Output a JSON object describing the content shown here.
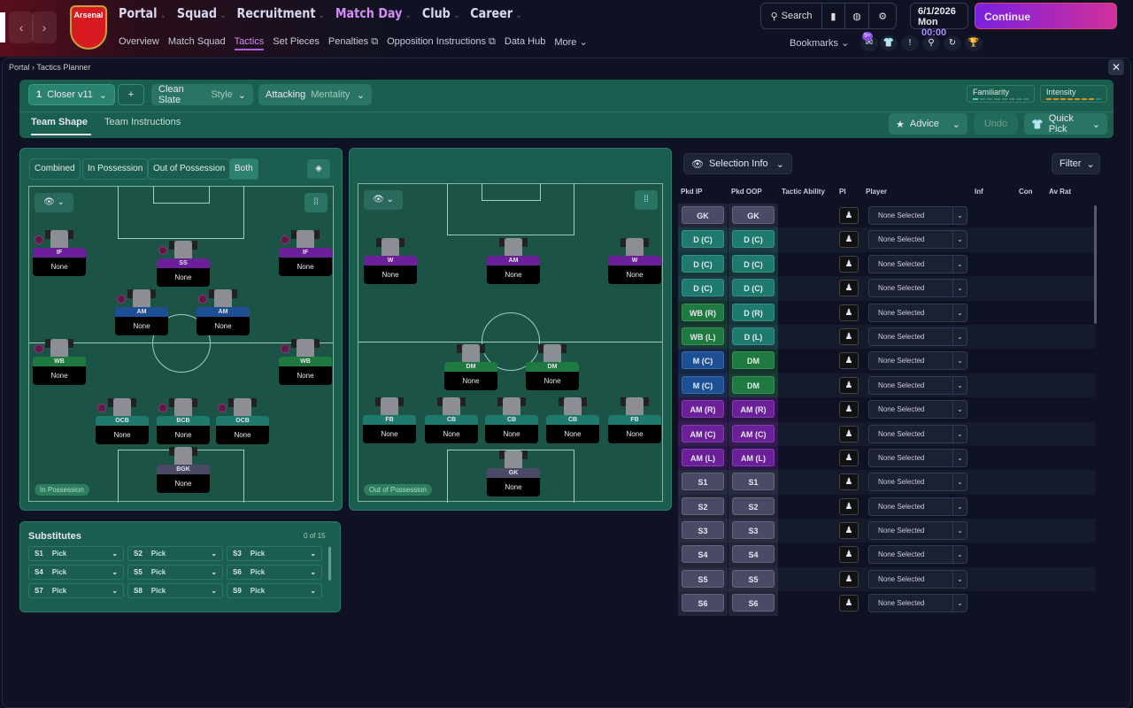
{
  "nav": {
    "back": "‹",
    "forward": "›",
    "club": "Arsenal",
    "main": [
      {
        "label": "Portal"
      },
      {
        "label": "Squad"
      },
      {
        "label": "Recruitment"
      },
      {
        "label": "Match Day",
        "active": true
      },
      {
        "label": "Club"
      },
      {
        "label": "Career"
      }
    ],
    "sub": [
      {
        "label": "Overview"
      },
      {
        "label": "Match Squad"
      },
      {
        "label": "Tactics",
        "active": true
      },
      {
        "label": "Set Pieces"
      },
      {
        "label": "Penalties ⧉"
      },
      {
        "label": "Opposition Instructions ⧉"
      },
      {
        "label": "Data Hub"
      },
      {
        "label": "More ⌄"
      }
    ],
    "search": "Search",
    "date": "6/1/2026",
    "day": "Mon",
    "time": "00:00",
    "continue": "Continue",
    "bookmarks": "Bookmarks",
    "notif_count": "9+"
  },
  "breadcrumb": {
    "root": "Portal",
    "current": "Tactics Planner"
  },
  "toolbar": {
    "tactic_num": "1",
    "tactic_name": "Closer v11",
    "add": "+",
    "style_value": "Clean Slate",
    "style_label": "Style",
    "mentality_value": "Attacking",
    "mentality_label": "Mentality",
    "familiarity": "Familiarity",
    "familiarity_level": 1,
    "intensity": "Intensity",
    "intensity_level": 7,
    "meter_max": 8,
    "tabs": [
      "Team Shape",
      "Team Instructions"
    ],
    "advice": "Advice",
    "undo": "Undo",
    "quick_pick": "Quick Pick"
  },
  "views": [
    "Combined",
    "In Possession",
    "Out of Possession",
    "Both"
  ],
  "colors": {
    "purple": "#6b1f99",
    "blue": "#1d4f95",
    "green": "#1e7a3e",
    "teal": "#1d7a6c",
    "grey": "#4a4a66"
  },
  "pitch_ip": {
    "label": "In Possession",
    "players": [
      {
        "role": "IF",
        "name": "None",
        "color": "purple"
      },
      {
        "role": "SS",
        "name": "None",
        "color": "purple"
      },
      {
        "role": "IF",
        "name": "None",
        "color": "purple"
      },
      {
        "role": "AM",
        "name": "None",
        "color": "blue"
      },
      {
        "role": "AM",
        "name": "None",
        "color": "blue"
      },
      {
        "role": "WB",
        "name": "None",
        "color": "green"
      },
      {
        "role": "WB",
        "name": "None",
        "color": "green"
      },
      {
        "role": "OCB",
        "name": "None",
        "color": "teal"
      },
      {
        "role": "BCB",
        "name": "None",
        "color": "teal"
      },
      {
        "role": "OCB",
        "name": "None",
        "color": "teal"
      },
      {
        "role": "BGK",
        "name": "None",
        "color": "grey"
      }
    ]
  },
  "pitch_oop": {
    "label": "Out of Possession",
    "players": [
      {
        "role": "W",
        "name": "None",
        "color": "purple"
      },
      {
        "role": "AM",
        "name": "None",
        "color": "purple"
      },
      {
        "role": "W",
        "name": "None",
        "color": "purple"
      },
      {
        "role": "DM",
        "name": "None",
        "color": "green"
      },
      {
        "role": "DM",
        "name": "None",
        "color": "green"
      },
      {
        "role": "FB",
        "name": "None",
        "color": "teal"
      },
      {
        "role": "CB",
        "name": "None",
        "color": "teal"
      },
      {
        "role": "CB",
        "name": "None",
        "color": "teal"
      },
      {
        "role": "CB",
        "name": "None",
        "color": "teal"
      },
      {
        "role": "FB",
        "name": "None",
        "color": "teal"
      },
      {
        "role": "GK",
        "name": "None",
        "color": "grey"
      }
    ]
  },
  "subs": {
    "title": "Substitutes",
    "count": "0 of 15",
    "slots": [
      {
        "id": "S1",
        "value": "Pick"
      },
      {
        "id": "S2",
        "value": "Pick"
      },
      {
        "id": "S3",
        "value": "Pick"
      },
      {
        "id": "S4",
        "value": "Pick"
      },
      {
        "id": "S5",
        "value": "Pick"
      },
      {
        "id": "S6",
        "value": "Pick"
      },
      {
        "id": "S7",
        "value": "Pick"
      },
      {
        "id": "S8",
        "value": "Pick"
      },
      {
        "id": "S9",
        "value": "Pick"
      }
    ]
  },
  "selection": {
    "info": "Selection Info",
    "filter": "Filter",
    "headers": [
      "Pkd IP",
      "Pkd OOP",
      "Tactic Ability",
      "PI",
      "Player",
      "Inf",
      "Con",
      "Av Rat"
    ],
    "rows": [
      {
        "ip": "GK",
        "oop": "GK",
        "ipc": "grey",
        "oopc": "grey",
        "player": "None Selected"
      },
      {
        "ip": "D (C)",
        "oop": "D (C)",
        "ipc": "teal",
        "oopc": "teal",
        "player": "None Selected"
      },
      {
        "ip": "D (C)",
        "oop": "D (C)",
        "ipc": "teal",
        "oopc": "teal",
        "player": "None Selected"
      },
      {
        "ip": "D (C)",
        "oop": "D (C)",
        "ipc": "teal",
        "oopc": "teal",
        "player": "None Selected"
      },
      {
        "ip": "WB (R)",
        "oop": "D (R)",
        "ipc": "green",
        "oopc": "teal",
        "player": "None Selected"
      },
      {
        "ip": "WB (L)",
        "oop": "D (L)",
        "ipc": "green",
        "oopc": "teal",
        "player": "None Selected"
      },
      {
        "ip": "M (C)",
        "oop": "DM",
        "ipc": "blue",
        "oopc": "green",
        "player": "None Selected"
      },
      {
        "ip": "M (C)",
        "oop": "DM",
        "ipc": "blue",
        "oopc": "green",
        "player": "None Selected"
      },
      {
        "ip": "AM (R)",
        "oop": "AM (R)",
        "ipc": "purple",
        "oopc": "purple",
        "player": "None Selected"
      },
      {
        "ip": "AM (C)",
        "oop": "AM (C)",
        "ipc": "purple",
        "oopc": "purple",
        "player": "None Selected"
      },
      {
        "ip": "AM (L)",
        "oop": "AM (L)",
        "ipc": "purple",
        "oopc": "purple",
        "player": "None Selected"
      },
      {
        "ip": "S1",
        "oop": "S1",
        "ipc": "grey",
        "oopc": "grey",
        "player": "None Selected"
      },
      {
        "ip": "S2",
        "oop": "S2",
        "ipc": "grey",
        "oopc": "grey",
        "player": "None Selected"
      },
      {
        "ip": "S3",
        "oop": "S3",
        "ipc": "grey",
        "oopc": "grey",
        "player": "None Selected"
      },
      {
        "ip": "S4",
        "oop": "S4",
        "ipc": "grey",
        "oopc": "grey",
        "player": "None Selected"
      },
      {
        "ip": "S5",
        "oop": "S5",
        "ipc": "grey",
        "oopc": "grey",
        "player": "None Selected"
      },
      {
        "ip": "S6",
        "oop": "S6",
        "ipc": "grey",
        "oopc": "grey",
        "player": "None Selected"
      }
    ]
  }
}
